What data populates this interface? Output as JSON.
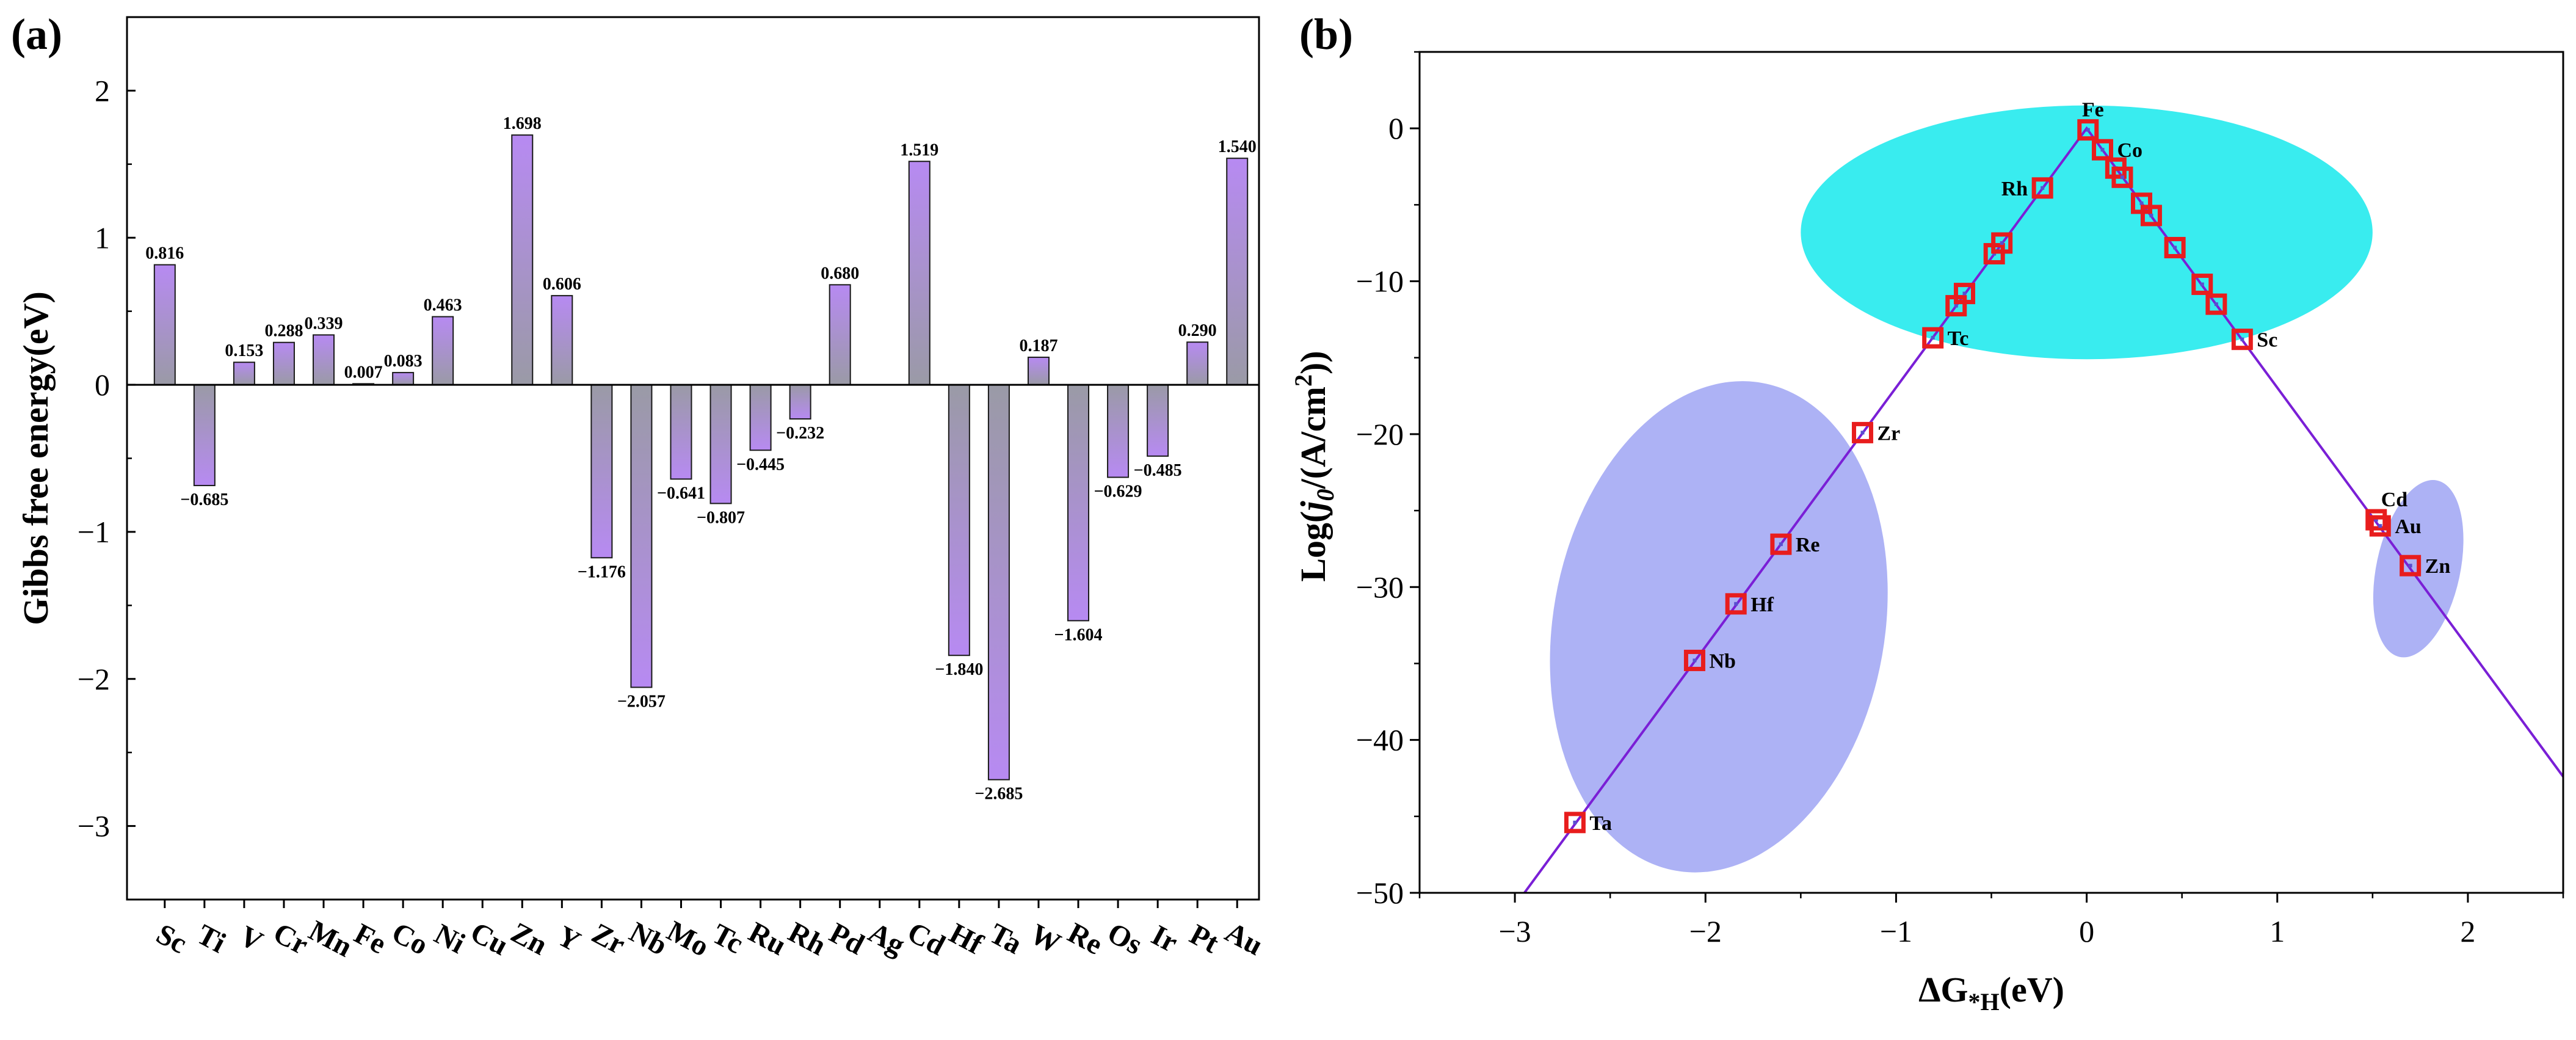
{
  "chart_data": [
    {
      "panel": "(a)",
      "type": "bar",
      "title": "",
      "xlabel": "",
      "ylabel": "Gibbs free energy(eV)",
      "ylim": [
        -3.5,
        2.5
      ],
      "yticks": [
        -3,
        -2,
        -1,
        0,
        1,
        2
      ],
      "grid": false,
      "categories": [
        "Sc",
        "Ti",
        "V",
        "Cr",
        "Mn",
        "Fe",
        "Co",
        "Ni",
        "Cu",
        "Zn",
        "Y",
        "Zr",
        "Nb",
        "Mo",
        "Tc",
        "Ru",
        "Rh",
        "Pd",
        "Ag",
        "Cd",
        "Hf",
        "Ta",
        "W",
        "Re",
        "Os",
        "Ir",
        "Pt",
        "Au"
      ],
      "values": [
        0.816,
        -0.685,
        0.153,
        0.288,
        0.339,
        0.007,
        0.083,
        0.463,
        null,
        1.698,
        0.606,
        -1.176,
        -2.057,
        -0.641,
        -0.807,
        -0.445,
        -0.232,
        0.68,
        null,
        1.519,
        -1.84,
        -2.685,
        0.187,
        -1.604,
        -0.629,
        -0.485,
        0.29,
        1.54
      ],
      "value_labels": [
        "0.816",
        "−0.685",
        "0.153",
        "0.288",
        "0.339",
        "0.007",
        "0.083",
        "0.463",
        "",
        "1.698",
        "0.606",
        "−1.176",
        "−2.057",
        "−0.641",
        "−0.807",
        "−0.445",
        "−0.232",
        "0.680",
        "",
        "1.519",
        "−1.840",
        "−2.685",
        "0.187",
        "−1.604",
        "−0.629",
        "−0.485",
        "0.290",
        "1.540"
      ],
      "bar_colors": {
        "light": "#9a9aa6",
        "dark": "#b78af2",
        "edge": "#1a1a1a"
      }
    },
    {
      "panel": "(b)",
      "type": "scatter",
      "title": "",
      "xlabel_main": "ΔG",
      "xlabel_sub": "*H",
      "xlabel_tail": "(eV)",
      "ylabel_pre": "Log(",
      "ylabel_j": "j",
      "ylabel_sub": "0",
      "ylabel_mid": "/(A/cm",
      "ylabel_sup": "2",
      "ylabel_post": "))",
      "xlim": [
        -3.5,
        2.5
      ],
      "ylim": [
        -50,
        5
      ],
      "xticks": [
        -3,
        -2,
        -1,
        0,
        1,
        2
      ],
      "yticks": [
        -50,
        -40,
        -30,
        -20,
        -10,
        0
      ],
      "grid": false,
      "volcano_line": {
        "points": [
          [
            -2.95,
            -50
          ],
          [
            0,
            0
          ],
          [
            2.5,
            -42.4
          ]
        ],
        "color": "#7a1fd6"
      },
      "regions": [
        {
          "cx": 0.0,
          "cy": -6.8,
          "rx": 1.5,
          "ry": 8.3,
          "angle": 0,
          "color": "#39ecef"
        },
        {
          "cx": -1.93,
          "cy": -32.6,
          "rx": 0.87,
          "ry": 16.2,
          "angle": 10,
          "color": "#adb2f5"
        },
        {
          "cx": 1.74,
          "cy": -28.8,
          "rx": 0.22,
          "ry": 5.9,
          "angle": 12,
          "color": "#adb2f5"
        }
      ],
      "marker_color": "#e81d1d",
      "points": [
        {
          "x": -2.685,
          "y": -45.4,
          "label": "Ta",
          "pos": "right"
        },
        {
          "x": -2.057,
          "y": -34.8,
          "label": "Nb",
          "pos": "right"
        },
        {
          "x": -1.84,
          "y": -31.1,
          "label": "Hf",
          "pos": "right"
        },
        {
          "x": -1.604,
          "y": -27.2,
          "label": "Re",
          "pos": "right"
        },
        {
          "x": -1.176,
          "y": -19.9,
          "label": "Zr",
          "pos": "right"
        },
        {
          "x": -0.807,
          "y": -13.7,
          "label": "Tc",
          "pos": "right"
        },
        {
          "x": -0.685,
          "y": -11.6,
          "label": "",
          "pos": "right"
        },
        {
          "x": -0.641,
          "y": -10.8,
          "label": "",
          "pos": "right"
        },
        {
          "x": -0.485,
          "y": -8.2,
          "label": "",
          "pos": "right"
        },
        {
          "x": -0.445,
          "y": -7.5,
          "label": "",
          "pos": "right"
        },
        {
          "x": -0.232,
          "y": -3.9,
          "label": "Rh",
          "pos": "left"
        },
        {
          "x": 0.007,
          "y": -0.1,
          "label": "Fe",
          "pos": "top"
        },
        {
          "x": 0.083,
          "y": -1.4,
          "label": "Co",
          "pos": "right"
        },
        {
          "x": 0.153,
          "y": -2.6,
          "label": "",
          "pos": "right"
        },
        {
          "x": 0.187,
          "y": -3.2,
          "label": "",
          "pos": "right"
        },
        {
          "x": 0.288,
          "y": -4.9,
          "label": "",
          "pos": "right"
        },
        {
          "x": 0.339,
          "y": -5.7,
          "label": "",
          "pos": "right"
        },
        {
          "x": 0.463,
          "y": -7.8,
          "label": "",
          "pos": "right"
        },
        {
          "x": 0.606,
          "y": -10.2,
          "label": "",
          "pos": "right"
        },
        {
          "x": 0.68,
          "y": -11.5,
          "label": "",
          "pos": "right"
        },
        {
          "x": 0.816,
          "y": -13.8,
          "label": "Sc",
          "pos": "right"
        },
        {
          "x": 1.519,
          "y": -25.6,
          "label": "Cd",
          "pos": "top"
        },
        {
          "x": 1.54,
          "y": -26.0,
          "label": "Au",
          "pos": "right"
        },
        {
          "x": 1.698,
          "y": -28.6,
          "label": "Zn",
          "pos": "right"
        }
      ]
    }
  ]
}
